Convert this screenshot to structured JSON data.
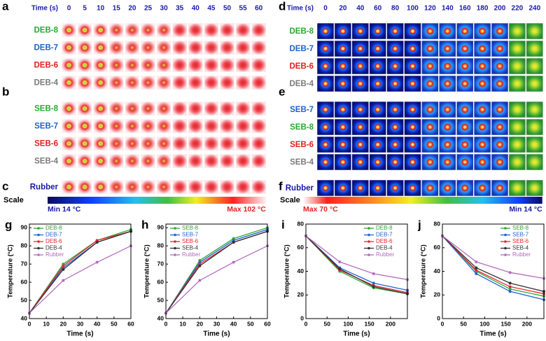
{
  "thermal_left": {
    "time_label": "Time (s)",
    "times": [
      0,
      5,
      10,
      15,
      20,
      25,
      30,
      35,
      40,
      45,
      50,
      55,
      60
    ],
    "panels": [
      {
        "letter": "a",
        "rows": [
          "DEB-8",
          "DEB-7",
          "DEB-6",
          "DEB-4"
        ],
        "row_colors": [
          "#2aa834",
          "#1f63c8",
          "#e0201e",
          "#7a7a7a"
        ]
      },
      {
        "letter": "b",
        "rows": [
          "SEB-8",
          "SEB-7",
          "SEB-6",
          "SEB-4"
        ],
        "row_colors": [
          "#2aa834",
          "#1f63c8",
          "#e0201e",
          "#7a7a7a"
        ]
      },
      {
        "letter": "c",
        "rows": [
          "Rubber"
        ],
        "row_colors": [
          "#1a1aa6"
        ]
      }
    ],
    "scale": {
      "label": "Scale",
      "min": "Min 14 °C",
      "max": "Max 102 °C"
    }
  },
  "thermal_right": {
    "time_label": "Time (s)",
    "times": [
      0,
      20,
      40,
      60,
      80,
      100,
      120,
      140,
      160,
      180,
      200,
      220,
      240
    ],
    "panels": [
      {
        "letter": "d",
        "rows": [
          "DEB-8",
          "DEB-7",
          "DEB-6",
          "DEB-4"
        ],
        "row_colors": [
          "#2aa834",
          "#1f63c8",
          "#e0201e",
          "#7a7a7a"
        ]
      },
      {
        "letter": "e",
        "rows": [
          "SEB-7",
          "SEB-8",
          "SEB-6",
          "SEB-4"
        ],
        "row_colors": [
          "#1f63c8",
          "#2aa834",
          "#e0201e",
          "#7a7a7a"
        ]
      },
      {
        "letter": "f",
        "rows": [
          "Rubber"
        ],
        "row_colors": [
          "#1a1aa6"
        ]
      }
    ],
    "scale": {
      "label": "Scale",
      "max": "Max 70 °C",
      "min": "Min 14 °C"
    }
  },
  "chart_data": [
    {
      "type": "line",
      "panel": "g",
      "x_label": "Time (s)",
      "y_label": "Temperature (°C)",
      "x": [
        0,
        20,
        40,
        60
      ],
      "xlim": [
        0,
        60
      ],
      "xticks": [
        0,
        10,
        20,
        30,
        40,
        50,
        60
      ],
      "ylim": [
        40,
        92
      ],
      "yticks": [
        40,
        50,
        60,
        70,
        80,
        90
      ],
      "legend": "upper-left",
      "series": [
        {
          "name": "DEB-8",
          "color": "#2ea836",
          "values": [
            43,
            70,
            83,
            89
          ]
        },
        {
          "name": "DEB-7",
          "color": "#1f63d6",
          "values": [
            43,
            68,
            82,
            88
          ]
        },
        {
          "name": "DEB-6",
          "color": "#e8262a",
          "values": [
            43,
            69,
            83,
            88
          ]
        },
        {
          "name": "DEB-4",
          "color": "#333333",
          "values": [
            43,
            67,
            82,
            88
          ]
        },
        {
          "name": "Rubber",
          "color": "#b46cc0",
          "values": [
            43,
            61,
            71,
            80
          ]
        }
      ]
    },
    {
      "type": "line",
      "panel": "h",
      "x_label": "Time (s)",
      "y_label": "Temperature (°C)",
      "x": [
        0,
        20,
        40,
        60
      ],
      "xlim": [
        0,
        60
      ],
      "xticks": [
        0,
        10,
        20,
        30,
        40,
        50,
        60
      ],
      "ylim": [
        40,
        92
      ],
      "yticks": [
        40,
        50,
        60,
        70,
        80,
        90
      ],
      "legend": "upper-left",
      "series": [
        {
          "name": "SEB-8",
          "color": "#2ea836",
          "values": [
            43,
            72,
            84,
            90
          ]
        },
        {
          "name": "SEB-7",
          "color": "#1f63d6",
          "values": [
            43,
            71,
            83,
            89
          ]
        },
        {
          "name": "SEB-6",
          "color": "#e8262a",
          "values": [
            43,
            70,
            82,
            88
          ]
        },
        {
          "name": "SEB-4",
          "color": "#333333",
          "values": [
            43,
            69,
            82,
            88
          ]
        },
        {
          "name": "Rubber",
          "color": "#b46cc0",
          "values": [
            43,
            61,
            71,
            80
          ]
        }
      ]
    },
    {
      "type": "line",
      "panel": "i",
      "x_label": "Time (s)",
      "y_label": "Temperature (°C)",
      "x": [
        0,
        80,
        160,
        240
      ],
      "xlim": [
        0,
        240
      ],
      "xticks": [
        0,
        50,
        100,
        150,
        200
      ],
      "ylim": [
        0,
        80
      ],
      "yticks": [
        0,
        20,
        40,
        60,
        80
      ],
      "legend": "upper-right",
      "series": [
        {
          "name": "DEB-8",
          "color": "#2ea836",
          "values": [
            70,
            40,
            26,
            21
          ]
        },
        {
          "name": "DEB-7",
          "color": "#1f63d6",
          "values": [
            70,
            43,
            30,
            24
          ]
        },
        {
          "name": "DEB-6",
          "color": "#e8262a",
          "values": [
            70,
            41,
            28,
            22
          ]
        },
        {
          "name": "DEB-4",
          "color": "#333333",
          "values": [
            70,
            42,
            27,
            21
          ]
        },
        {
          "name": "Rubber",
          "color": "#b46cc0",
          "values": [
            70,
            48,
            38,
            33
          ]
        }
      ]
    },
    {
      "type": "line",
      "panel": "j",
      "x_label": "Time (s)",
      "y_label": "Temperature (°C)",
      "x": [
        0,
        80,
        160,
        240
      ],
      "xlim": [
        0,
        240
      ],
      "xticks": [
        0,
        50,
        100,
        150,
        200
      ],
      "ylim": [
        0,
        80
      ],
      "yticks": [
        0,
        20,
        40,
        60,
        80
      ],
      "legend": "upper-right",
      "series": [
        {
          "name": "SEB-8",
          "color": "#2ea836",
          "values": [
            70,
            40,
            25,
            19
          ]
        },
        {
          "name": "SEB-7",
          "color": "#1f63d6",
          "values": [
            70,
            38,
            23,
            16
          ]
        },
        {
          "name": "SEB-6",
          "color": "#e8262a",
          "values": [
            70,
            41,
            27,
            21
          ]
        },
        {
          "name": "SEB-4",
          "color": "#333333",
          "values": [
            70,
            43,
            30,
            23
          ]
        },
        {
          "name": "Rubber",
          "color": "#b46cc0",
          "values": [
            70,
            48,
            39,
            34
          ]
        }
      ]
    }
  ]
}
